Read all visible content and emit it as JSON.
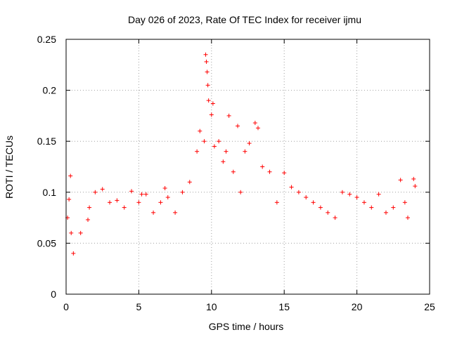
{
  "chart_data": {
    "type": "scatter",
    "title": "Day 026 of 2023, Rate Of TEC Index for receiver ijmu",
    "xlabel": "GPS time / hours",
    "ylabel": "ROTI / TECUs",
    "xlim": [
      0,
      25
    ],
    "ylim": [
      0,
      0.25
    ],
    "xticks": [
      0,
      5,
      10,
      15,
      20,
      25
    ],
    "xtick_labels": [
      "0",
      "5",
      "10",
      "15",
      "20",
      "25"
    ],
    "yticks": [
      0,
      0.05,
      0.1,
      0.15,
      0.2,
      0.25
    ],
    "ytick_labels": [
      "0",
      "0.05",
      "0.1",
      "0.15",
      "0.2",
      "0.25"
    ],
    "grid": true,
    "marker": "+",
    "color": "#ff0000",
    "series": [
      {
        "name": "ROTI",
        "x": [
          0.1,
          0.2,
          0.3,
          0.35,
          0.5,
          1.0,
          1.5,
          1.6,
          2.0,
          2.5,
          3.0,
          3.5,
          4.0,
          4.5,
          5.0,
          5.2,
          5.5,
          6.0,
          6.5,
          6.8,
          7.0,
          7.5,
          8.0,
          8.5,
          9.0,
          9.2,
          9.5,
          9.6,
          9.65,
          9.7,
          9.75,
          9.8,
          10.0,
          10.1,
          10.2,
          10.5,
          10.8,
          11.0,
          11.2,
          11.5,
          11.8,
          12.0,
          12.3,
          12.6,
          13.0,
          13.2,
          13.5,
          14.0,
          14.5,
          15.0,
          15.5,
          16.0,
          16.5,
          17.0,
          17.5,
          18.0,
          18.5,
          19.0,
          19.5,
          20.0,
          20.5,
          21.0,
          21.5,
          22.0,
          22.5,
          23.0,
          23.3,
          23.5,
          23.9,
          24.0
        ],
        "y": [
          0.075,
          0.093,
          0.116,
          0.06,
          0.04,
          0.06,
          0.073,
          0.085,
          0.1,
          0.103,
          0.09,
          0.092,
          0.085,
          0.101,
          0.09,
          0.098,
          0.098,
          0.08,
          0.09,
          0.104,
          0.095,
          0.08,
          0.1,
          0.11,
          0.14,
          0.16,
          0.15,
          0.235,
          0.228,
          0.218,
          0.205,
          0.19,
          0.176,
          0.187,
          0.145,
          0.15,
          0.13,
          0.14,
          0.175,
          0.12,
          0.165,
          0.1,
          0.14,
          0.148,
          0.168,
          0.163,
          0.125,
          0.12,
          0.09,
          0.119,
          0.105,
          0.1,
          0.095,
          0.09,
          0.085,
          0.08,
          0.075,
          0.1,
          0.098,
          0.095,
          0.09,
          0.085,
          0.098,
          0.08,
          0.085,
          0.112,
          0.09,
          0.075,
          0.113,
          0.106
        ]
      }
    ]
  }
}
